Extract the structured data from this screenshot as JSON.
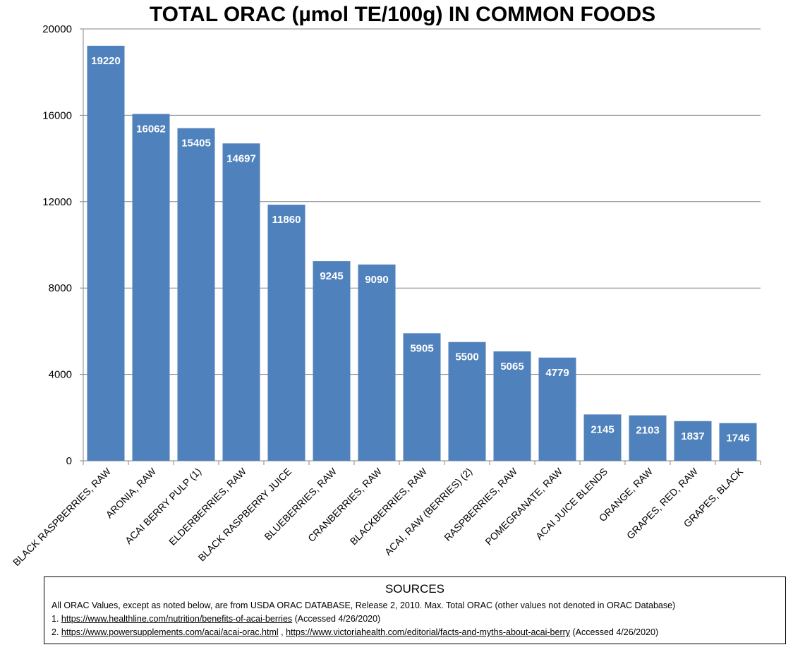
{
  "chart_data": {
    "type": "bar",
    "title": "TOTAL ORAC (µmol TE/100g) IN COMMON FOODS",
    "categories": [
      "BLACK RASPBERRIES, RAW",
      "ARONIA, RAW",
      "ACAI BERRY PULP (1)",
      "ELDERBERRIES, RAW",
      "BLACK RASPBERRY JUICE",
      "BLUEBERRIES, RAW",
      "CRANBERRIES, RAW",
      "BLACKBERRIES, RAW",
      "ACAI, RAW (BERRIES) (2)",
      "RASPBERRIES, RAW",
      "POMEGRANATE, RAW",
      "ACAI JUICE BLENDS",
      "ORANGE, RAW",
      "GRAPES, RED, RAW",
      "GRAPES, BLACK"
    ],
    "values": [
      19220,
      16062,
      15405,
      14697,
      11860,
      9245,
      9090,
      5905,
      5500,
      5065,
      4779,
      2145,
      2103,
      1837,
      1746
    ],
    "value_labels": [
      "19220",
      "16062",
      "15405",
      "14697",
      "11860",
      "9245",
      "9090",
      "5905",
      "5500",
      "5065",
      "4779",
      "2145",
      "2103",
      "1837",
      "1746"
    ],
    "ylim": [
      0,
      20000
    ],
    "yticks": [
      0,
      4000,
      8000,
      12000,
      16000,
      20000
    ],
    "ytick_labels": [
      "0",
      "4000",
      "8000",
      "12000",
      "16000",
      "20000"
    ],
    "xlabel": "",
    "ylabel": "",
    "grid": true,
    "legend": "none",
    "bar_color": "#4f81bd"
  },
  "sources": {
    "heading": "SOURCES",
    "line0": "All ORAC Values, except as noted below, are from USDA ORAC DATABASE, Release 2, 2010. Max. Total ORAC (other values not denoted in ORAC Database)",
    "line1_prefix": "1. ",
    "line1_link": "https://www.healthline.com/nutrition/benefits-of-acai-berries",
    "line1_suffix": " (Accessed 4/26/2020)",
    "line2_prefix": "2. ",
    "line2_link_a": "https://www.powersupplements.com/acai/acai-orac.html",
    "line2_sep": " , ",
    "line2_link_b": "https://www.victoriahealth.com/editorial/facts-and-myths-about-acai-berry",
    "line2_suffix": " (Accessed 4/26/2020)"
  }
}
